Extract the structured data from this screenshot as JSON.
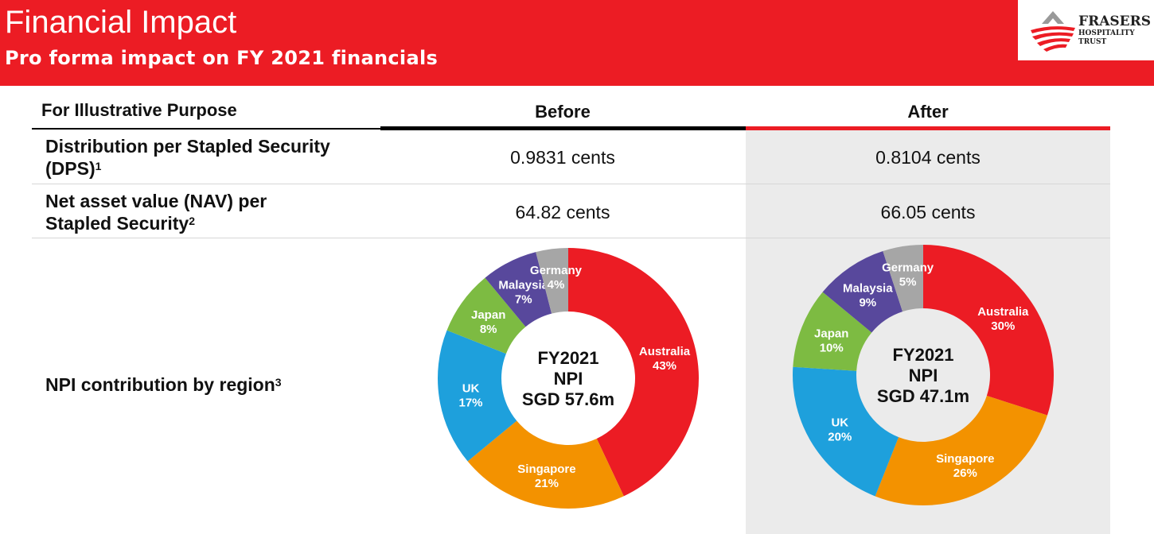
{
  "header": {
    "title": "Financial Impact",
    "subtitle": "Pro forma impact on FY 2021 financials",
    "logo": {
      "line1": "FRASERS",
      "line2": "HOSPITALITY",
      "line3": "TRUST"
    }
  },
  "table": {
    "col_label": "For Illustrative Purpose",
    "col_before": "Before",
    "col_after": "After",
    "rows": [
      {
        "label_line1": "Distribution per Stapled Security",
        "label_line2": "(DPS)",
        "footnote": "1",
        "before": "0.9831 cents",
        "after": "0.8104 cents"
      },
      {
        "label_line1": "Net asset value (NAV) per",
        "label_line2": "Stapled Security",
        "footnote": "2",
        "before": "64.82 cents",
        "after": "66.05 cents"
      },
      {
        "label": "NPI contribution by region",
        "footnote": "3"
      }
    ]
  },
  "colors": {
    "brand_red": "#ec1c24",
    "Australia": "#ec1c24",
    "Singapore": "#f39200",
    "UK": "#1ea0dc",
    "Japan": "#7dbb42",
    "Malaysia": "#58489c",
    "Germany": "#a6a6a6"
  },
  "chart_data": [
    {
      "type": "pie",
      "variant": "donut",
      "center_text": [
        "FY2021",
        "NPI",
        "SGD 57.6m"
      ],
      "slices": [
        {
          "label": "Australia",
          "pct_label": "43%",
          "value": 43
        },
        {
          "label": "Singapore",
          "pct_label": "21%",
          "value": 21
        },
        {
          "label": "UK",
          "pct_label": "17%",
          "value": 17
        },
        {
          "label": "Japan",
          "pct_label": "8%",
          "value": 8
        },
        {
          "label": "Malaysia",
          "pct_label": "7%",
          "value": 7
        },
        {
          "label": "Germany",
          "pct_label": "4%",
          "value": 4
        }
      ]
    },
    {
      "type": "pie",
      "variant": "donut",
      "center_text": [
        "FY2021",
        "NPI",
        "SGD 47.1m"
      ],
      "slices": [
        {
          "label": "Australia",
          "pct_label": "30%",
          "value": 30
        },
        {
          "label": "Singapore",
          "pct_label": "26%",
          "value": 26
        },
        {
          "label": "UK",
          "pct_label": "20%",
          "value": 20
        },
        {
          "label": "Japan",
          "pct_label": "10%",
          "value": 10
        },
        {
          "label": "Malaysia",
          "pct_label": "9%",
          "value": 9
        },
        {
          "label": "Germany",
          "pct_label": "5%",
          "value": 5
        }
      ]
    }
  ]
}
